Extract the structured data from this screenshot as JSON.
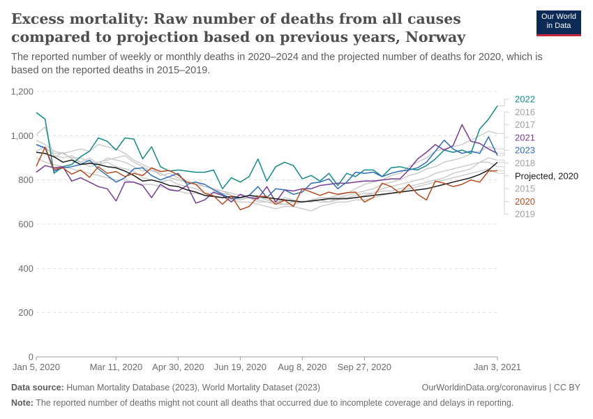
{
  "header": {
    "title": "Excess mortality: Raw number of deaths from all causes compared to projection based on previous years, Norway",
    "subtitle": "The reported number of weekly or monthly deaths in 2020–2024 and the projected number of deaths for 2020, which is based on the reported deaths in 2015–2019.",
    "logo_line1": "Our World",
    "logo_line2": "in Data"
  },
  "footer": {
    "source_label": "Data source:",
    "source_text": "Human Mortality Database (2023), World Mortality Dataset (2023)",
    "license": "OurWorldinData.org/coronavirus | CC BY",
    "note_label": "Note:",
    "note_text": "The reported number of deaths might not count all deaths that occurred due to incomplete coverage and delays in reporting."
  },
  "chart_data": {
    "type": "line",
    "x_ticks": [
      "Jan 5, 2020",
      "Mar 11, 2020",
      "Apr 30, 2020",
      "Jun 19, 2020",
      "Aug 8, 2020",
      "Sep 27, 2020",
      "Jan 3, 2021"
    ],
    "x_tick_weeks": [
      1,
      10,
      17,
      24,
      31,
      38,
      53
    ],
    "y_ticks": [
      "0",
      "200",
      "400",
      "600",
      "800",
      "1,000",
      "1,200"
    ],
    "ylim": [
      0,
      1200
    ],
    "grid": true,
    "legend_position": "right",
    "series": [
      {
        "name": "2015",
        "color": "#c9c9c9",
        "label_color": "#a3a3a3",
        "values": [
          1005,
          1040,
          900,
          925,
          895,
          880,
          900,
          870,
          900,
          890,
          880,
          860,
          840,
          850,
          820,
          830,
          810,
          790,
          790,
          770,
          760,
          740,
          730,
          710,
          720,
          700,
          700,
          690,
          690,
          700,
          705,
          700,
          710,
          700,
          720,
          720,
          730,
          740,
          740,
          750,
          750,
          760,
          770,
          780,
          790,
          800,
          810,
          830,
          840,
          850,
          880,
          880,
          860
        ]
      },
      {
        "name": "2016",
        "color": "#c9c9c9",
        "label_color": "#a3a3a3",
        "values": [
          930,
          950,
          910,
          900,
          910,
          880,
          860,
          870,
          880,
          860,
          850,
          840,
          810,
          800,
          790,
          800,
          780,
          770,
          760,
          740,
          740,
          730,
          720,
          710,
          720,
          730,
          710,
          700,
          710,
          700,
          700,
          710,
          720,
          720,
          730,
          740,
          760,
          780,
          790,
          800,
          820,
          830,
          860,
          880,
          900,
          930,
          940,
          950,
          960,
          980,
          1000,
          1020,
          1010
        ]
      },
      {
        "name": "2017",
        "color": "#c9c9c9",
        "label_color": "#a3a3a3",
        "values": [
          980,
          960,
          930,
          920,
          900,
          900,
          880,
          880,
          890,
          900,
          910,
          880,
          860,
          840,
          830,
          810,
          800,
          790,
          780,
          770,
          760,
          750,
          740,
          730,
          720,
          720,
          710,
          700,
          720,
          710,
          700,
          710,
          710,
          720,
          720,
          730,
          740,
          750,
          760,
          780,
          790,
          800,
          820,
          830,
          850,
          860,
          880,
          890,
          900,
          920,
          930,
          950,
          940
        ]
      },
      {
        "name": "2018",
        "color": "#c9c9c9",
        "label_color": "#a3a3a3",
        "values": [
          960,
          940,
          920,
          920,
          930,
          940,
          930,
          960,
          950,
          940,
          920,
          890,
          870,
          850,
          830,
          810,
          800,
          790,
          780,
          770,
          760,
          750,
          730,
          720,
          720,
          710,
          700,
          700,
          690,
          690,
          700,
          710,
          700,
          700,
          710,
          720,
          720,
          730,
          740,
          760,
          770,
          780,
          790,
          800,
          810,
          830,
          840,
          850,
          860,
          870,
          880,
          900,
          890
        ]
      },
      {
        "name": "2019",
        "color": "#c9c9c9",
        "label_color": "#a3a3a3",
        "values": [
          900,
          880,
          870,
          860,
          850,
          840,
          830,
          820,
          810,
          800,
          800,
          790,
          780,
          780,
          770,
          760,
          750,
          740,
          740,
          730,
          730,
          720,
          710,
          700,
          700,
          690,
          680,
          670,
          680,
          680,
          670,
          660,
          680,
          690,
          700,
          700,
          710,
          710,
          720,
          730,
          740,
          750,
          760,
          770,
          780,
          790,
          800,
          810,
          820,
          830,
          840,
          850,
          830
        ]
      },
      {
        "name": "2022",
        "color": "#138a84",
        "label_color": "#138a84",
        "values": [
          1105,
          1075,
          830,
          860,
          870,
          905,
          930,
          990,
          975,
          935,
          990,
          985,
          895,
          950,
          860,
          840,
          845,
          840,
          835,
          835,
          845,
          760,
          810,
          790,
          815,
          895,
          795,
          860,
          880,
          865,
          805,
          820,
          795,
          830,
          775,
          830,
          815,
          845,
          845,
          815,
          855,
          860,
          850,
          845,
          865,
          895,
          935,
          925,
          935,
          920,
          1030,
          1075,
          1135
        ]
      },
      {
        "name": "2021",
        "color": "#753d93",
        "label_color": "#753d93",
        "values": [
          835,
          865,
          855,
          860,
          795,
          810,
          790,
          770,
          760,
          705,
          790,
          790,
          775,
          720,
          780,
          755,
          750,
          775,
          695,
          710,
          745,
          730,
          700,
          735,
          720,
          715,
          770,
          700,
          755,
          750,
          760,
          760,
          775,
          780,
          785,
          785,
          790,
          795,
          795,
          800,
          805,
          805,
          845,
          895,
          925,
          960,
          935,
          955,
          1050,
          975,
          965,
          940,
          920
        ]
      },
      {
        "name": "2023",
        "color": "#2f6eb4",
        "label_color": "#2f6eb4",
        "values": [
          960,
          945,
          840,
          855,
          860,
          870,
          890,
          850,
          820,
          790,
          810,
          850,
          855,
          820,
          800,
          815,
          830,
          780,
          790,
          780,
          755,
          735,
          715,
          720,
          730,
          770,
          720,
          760,
          755,
          735,
          745,
          785,
          790,
          805,
          760,
          790,
          835,
          830,
          835,
          815,
          830,
          840,
          845,
          855,
          880,
          930,
          980,
          940,
          920,
          930,
          920,
          995,
          910
        ]
      },
      {
        "name": "Projected, 2020",
        "color": "#1a1a1a",
        "label_color": "#1a1a1a",
        "values": [
          925,
          920,
          905,
          880,
          890,
          870,
          875,
          870,
          860,
          855,
          840,
          820,
          795,
          800,
          790,
          775,
          770,
          755,
          745,
          730,
          725,
          720,
          725,
          720,
          730,
          725,
          720,
          715,
          710,
          705,
          700,
          705,
          710,
          715,
          715,
          715,
          720,
          725,
          730,
          735,
          740,
          745,
          750,
          755,
          760,
          770,
          780,
          790,
          800,
          810,
          825,
          845,
          880
        ]
      },
      {
        "name": "2020",
        "color": "#b5491f",
        "label_color": "#b5491f",
        "values": [
          862,
          948,
          848,
          855,
          826,
          845,
          812,
          860,
          830,
          838,
          815,
          830,
          820,
          855,
          838,
          843,
          822,
          790,
          780,
          740,
          728,
          690,
          728,
          665,
          680,
          725,
          725,
          690,
          708,
          680,
          760,
          745,
          730,
          745,
          735,
          742,
          745,
          700,
          720,
          785,
          770,
          740,
          780,
          735,
          710,
          795,
          785,
          770,
          780,
          800,
          790,
          840,
          842
        ]
      }
    ]
  }
}
